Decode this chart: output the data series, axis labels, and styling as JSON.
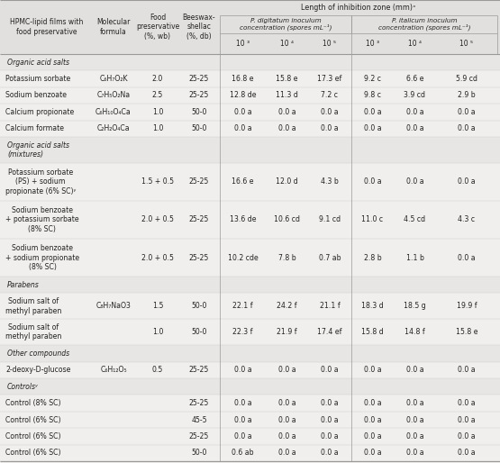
{
  "title": "Length of inhibition zone (mm)ˣ",
  "subheader1": "P. digitatum inoculum\nconcentration (spores mL⁻¹)",
  "subheader2": "P. italicum inoculum\nconcentration (spores mL⁻¹)",
  "col0_header": "HPMC-lipid films with\nfood preservative",
  "col1_header": "Molecular\nformula",
  "col2_header": "Food\npreservative\n(%, wb)",
  "col3_header": "Beeswax-\nshellac\n(%, db)",
  "exp_labels": [
    "10 ³",
    "10 ⁴",
    "10 ⁵",
    "10 ³",
    "10 ⁴",
    "10 ⁵"
  ],
  "rows": [
    {
      "type": "section",
      "label": "Organic acid salts"
    },
    {
      "type": "data",
      "c0": "Potassium sorbate",
      "c1": "C₆H₇O₂K",
      "c2": "2.0",
      "c3": "25-25",
      "c4": "16.8 e",
      "c5": "15.8 e",
      "c6": "17.3 ef",
      "c7": "9.2 c",
      "c8": "6.6 e",
      "c9": "5.9 cd",
      "nlines": 1
    },
    {
      "type": "data",
      "c0": "Sodium benzoate",
      "c1": "C₇H₅O₂Na",
      "c2": "2.5",
      "c3": "25-25",
      "c4": "12.8 de",
      "c5": "11.3 d",
      "c6": "7.2 c",
      "c7": "9.8 c",
      "c8": "3.9 cd",
      "c9": "2.9 b",
      "nlines": 1
    },
    {
      "type": "data",
      "c0": "Calcium propionate",
      "c1": "C₆H₁₀O₄Ca",
      "c2": "1.0",
      "c3": "50-0",
      "c4": "0.0 a",
      "c5": "0.0 a",
      "c6": "0.0 a",
      "c7": "0.0 a",
      "c8": "0.0 a",
      "c9": "0.0 a",
      "nlines": 1
    },
    {
      "type": "data",
      "c0": "Calcium formate",
      "c1": "C₂H₂O₄Ca",
      "c2": "1.0",
      "c3": "50-0",
      "c4": "0.0 a",
      "c5": "0.0 a",
      "c6": "0.0 a",
      "c7": "0.0 a",
      "c8": "0.0 a",
      "c9": "0.0 a",
      "nlines": 1
    },
    {
      "type": "section",
      "label": "Organic acid salts\n(mixtures)",
      "nlines": 2
    },
    {
      "type": "data",
      "c0": "Potassium sorbate\n(PS) + sodium\npropionate (6% SC)ʸ",
      "c1": "",
      "c2": "1.5 + 0.5",
      "c3": "25-25",
      "c4": "16.6 e",
      "c5": "12.0 d",
      "c6": "4.3 b",
      "c7": "0.0 a",
      "c8": "0.0 a",
      "c9": "0.0 a",
      "nlines": 3
    },
    {
      "type": "data",
      "c0": "Sodium benzoate\n+ potassium sorbate\n(8% SC)",
      "c1": "",
      "c2": "2.0 + 0.5",
      "c3": "25-25",
      "c4": "13.6 de",
      "c5": "10.6 cd",
      "c6": "9.1 cd",
      "c7": "11.0 c",
      "c8": "4.5 cd",
      "c9": "4.3 c",
      "nlines": 3
    },
    {
      "type": "data",
      "c0": "Sodium benzoate\n+ sodium propionate\n(8% SC)",
      "c1": "",
      "c2": "2.0 + 0.5",
      "c3": "25-25",
      "c4": "10.2 cde",
      "c5": "7.8 b",
      "c6": "0.7 ab",
      "c7": "2.8 b",
      "c8": "1.1 b",
      "c9": "0.0 a",
      "nlines": 3
    },
    {
      "type": "section",
      "label": "Parabens",
      "nlines": 1
    },
    {
      "type": "data",
      "c0": "Sodium salt of\nmethyl paraben",
      "c1": "C₈H₇NaO3",
      "c2": "1.5",
      "c3": "50-0",
      "c4": "22.1 f",
      "c5": "24.2 f",
      "c6": "21.1 f",
      "c7": "18.3 d",
      "c8": "18.5 g",
      "c9": "19.9 f",
      "nlines": 2
    },
    {
      "type": "data",
      "c0": "Sodium salt of\nmethyl paraben",
      "c1": "",
      "c2": "1.0",
      "c3": "50-0",
      "c4": "22.3 f",
      "c5": "21.9 f",
      "c6": "17.4 ef",
      "c7": "15.8 d",
      "c8": "14.8 f",
      "c9": "15.8 e",
      "nlines": 2
    },
    {
      "type": "section",
      "label": "Other compounds",
      "nlines": 1
    },
    {
      "type": "data",
      "c0": "2-deoxy-D-glucose",
      "c1": "C₆H₁₂O₅",
      "c2": "0.5",
      "c3": "25-25",
      "c4": "0.0 a",
      "c5": "0.0 a",
      "c6": "0.0 a",
      "c7": "0.0 a",
      "c8": "0.0 a",
      "c9": "0.0 a",
      "nlines": 1
    },
    {
      "type": "section",
      "label": "Controlsʸ",
      "nlines": 1
    },
    {
      "type": "data",
      "c0": "Control (8% SC)",
      "c1": "",
      "c2": "",
      "c3": "25-25",
      "c4": "0.0 a",
      "c5": "0.0 a",
      "c6": "0.0 a",
      "c7": "0.0 a",
      "c8": "0.0 a",
      "c9": "0.0 a",
      "nlines": 1
    },
    {
      "type": "data",
      "c0": "Control (6% SC)",
      "c1": "",
      "c2": "",
      "c3": "45-5",
      "c4": "0.0 a",
      "c5": "0.0 a",
      "c6": "0.0 a",
      "c7": "0.0 a",
      "c8": "0.0 a",
      "c9": "0.0 a",
      "nlines": 1
    },
    {
      "type": "data",
      "c0": "Control (6% SC)",
      "c1": "",
      "c2": "",
      "c3": "25-25",
      "c4": "0.0 a",
      "c5": "0.0 a",
      "c6": "0.0 a",
      "c7": "0.0 a",
      "c8": "0.0 a",
      "c9": "0.0 a",
      "nlines": 1
    },
    {
      "type": "data",
      "c0": "Control (6% SC)",
      "c1": "",
      "c2": "",
      "c3": "50-0",
      "c4": "0.6 ab",
      "c5": "0.0 a",
      "c6": "0.0 a",
      "c7": "0.0 a",
      "c8": "0.0 a",
      "c9": "0.0 a",
      "nlines": 1
    }
  ],
  "bg_color": "#f0efed",
  "header_bg": "#e2e0de",
  "section_bg": "#e8e6e4",
  "line_color": "#999999",
  "text_color": "#222222",
  "font_size": 5.6,
  "header_font_size": 5.8
}
